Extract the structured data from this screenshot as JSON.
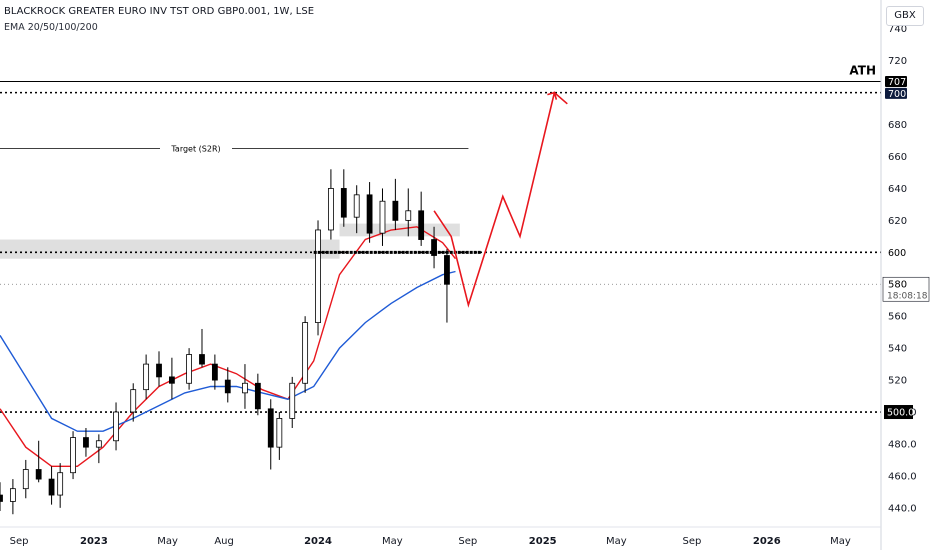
{
  "header": {
    "title": "BLACKROCK GREATER EURO INV TST ORD GBP0.001, 1W, LSE",
    "indicator": "EMA 20/50/100/200"
  },
  "currency_label": "GBX",
  "annotations": {
    "ath_label": "ATH",
    "target_label": "Target (S2R)"
  },
  "price_axis": {
    "ticks": [
      "740",
      "720",
      "700",
      "680",
      "660",
      "640",
      "620",
      "600",
      "580",
      "560",
      "540",
      "520",
      "500.0",
      "480.0",
      "460.0",
      "440.0"
    ],
    "badges": {
      "ath": "707",
      "level_700": "700",
      "level_600": "600",
      "last_price": "580",
      "countdown": "18:08:18",
      "level_500": "500.0"
    }
  },
  "time_axis": {
    "labels": [
      "Sep",
      "2023",
      "May",
      "Aug",
      "2024",
      "May",
      "Sep",
      "2025",
      "May",
      "Sep",
      "2026",
      "May"
    ]
  },
  "colors": {
    "up_candle": "#ffffff",
    "down_candle": "#000000",
    "ema_fast": "#e8171e",
    "ema_slow": "#1f5bd6",
    "projection": "#e8171e",
    "support_zone": "#d9d9d9",
    "ath_badge": "#000000",
    "level_badge": "#0d1b3e"
  },
  "chart_data": {
    "type": "candlestick",
    "symbol": "BLACKROCK GREATER EURO INV TST ORD GBP0.001",
    "timeframe": "1W",
    "exchange": "LSE",
    "y_unit": "GBX",
    "ylim": [
      428,
      758
    ],
    "x_range": [
      "2022-08-01",
      "2026-07-06"
    ],
    "grid": false,
    "candles": [
      {
        "d": "2022-08-01",
        "o": 448,
        "h": 456,
        "l": 438,
        "c": 444
      },
      {
        "d": "2022-08-22",
        "o": 444,
        "h": 458,
        "l": 436,
        "c": 452
      },
      {
        "d": "2022-09-12",
        "o": 452,
        "h": 470,
        "l": 446,
        "c": 464
      },
      {
        "d": "2022-10-03",
        "o": 464,
        "h": 482,
        "l": 456,
        "c": 458
      },
      {
        "d": "2022-10-24",
        "o": 458,
        "h": 466,
        "l": 442,
        "c": 448
      },
      {
        "d": "2022-11-07",
        "o": 448,
        "h": 468,
        "l": 440,
        "c": 462
      },
      {
        "d": "2022-11-28",
        "o": 462,
        "h": 488,
        "l": 458,
        "c": 484
      },
      {
        "d": "2022-12-19",
        "o": 484,
        "h": 490,
        "l": 472,
        "c": 478
      },
      {
        "d": "2023-01-09",
        "o": 478,
        "h": 486,
        "l": 468,
        "c": 482
      },
      {
        "d": "2023-02-06",
        "o": 482,
        "h": 506,
        "l": 476,
        "c": 500
      },
      {
        "d": "2023-03-06",
        "o": 500,
        "h": 518,
        "l": 494,
        "c": 514
      },
      {
        "d": "2023-03-27",
        "o": 514,
        "h": 536,
        "l": 508,
        "c": 530
      },
      {
        "d": "2023-04-17",
        "o": 530,
        "h": 538,
        "l": 516,
        "c": 522
      },
      {
        "d": "2023-05-08",
        "o": 522,
        "h": 534,
        "l": 508,
        "c": 518
      },
      {
        "d": "2023-06-05",
        "o": 518,
        "h": 540,
        "l": 514,
        "c": 536
      },
      {
        "d": "2023-06-26",
        "o": 536,
        "h": 552,
        "l": 528,
        "c": 530
      },
      {
        "d": "2023-07-17",
        "o": 530,
        "h": 536,
        "l": 514,
        "c": 520
      },
      {
        "d": "2023-08-07",
        "o": 520,
        "h": 528,
        "l": 506,
        "c": 512
      },
      {
        "d": "2023-09-04",
        "o": 512,
        "h": 530,
        "l": 502,
        "c": 518
      },
      {
        "d": "2023-09-25",
        "o": 518,
        "h": 524,
        "l": 498,
        "c": 502
      },
      {
        "d": "2023-10-16",
        "o": 502,
        "h": 508,
        "l": 464,
        "c": 478
      },
      {
        "d": "2023-10-30",
        "o": 478,
        "h": 500,
        "l": 470,
        "c": 496
      },
      {
        "d": "2023-11-20",
        "o": 496,
        "h": 522,
        "l": 490,
        "c": 518
      },
      {
        "d": "2023-12-11",
        "o": 518,
        "h": 560,
        "l": 512,
        "c": 556
      },
      {
        "d": "2024-01-01",
        "o": 556,
        "h": 620,
        "l": 548,
        "c": 614
      },
      {
        "d": "2024-01-22",
        "o": 614,
        "h": 652,
        "l": 608,
        "c": 640
      },
      {
        "d": "2024-02-12",
        "o": 640,
        "h": 652,
        "l": 616,
        "c": 622
      },
      {
        "d": "2024-03-04",
        "o": 622,
        "h": 642,
        "l": 612,
        "c": 636
      },
      {
        "d": "2024-03-25",
        "o": 636,
        "h": 644,
        "l": 606,
        "c": 612
      },
      {
        "d": "2024-04-15",
        "o": 612,
        "h": 640,
        "l": 604,
        "c": 632
      },
      {
        "d": "2024-05-06",
        "o": 632,
        "h": 646,
        "l": 614,
        "c": 620
      },
      {
        "d": "2024-05-27",
        "o": 620,
        "h": 640,
        "l": 610,
        "c": 626
      },
      {
        "d": "2024-06-17",
        "o": 626,
        "h": 638,
        "l": 604,
        "c": 608
      },
      {
        "d": "2024-07-08",
        "o": 608,
        "h": 616,
        "l": 590,
        "c": 598
      },
      {
        "d": "2024-07-29",
        "o": 598,
        "h": 602,
        "l": 556,
        "c": 580
      }
    ],
    "series": [
      {
        "type": "line",
        "x": [
          "2022-08-01",
          "2022-09-12",
          "2022-10-24",
          "2022-12-05",
          "2023-01-16",
          "2023-03-06",
          "2023-04-17",
          "2023-05-29",
          "2023-07-10",
          "2023-08-21",
          "2023-10-02",
          "2023-11-13",
          "2023-12-25",
          "2024-02-05",
          "2024-03-18",
          "2024-04-29",
          "2024-06-10",
          "2024-07-22",
          "2024-08-12"
        ],
        "y": [
          502,
          478,
          466,
          466,
          478,
          500,
          516,
          524,
          530,
          524,
          514,
          508,
          532,
          586,
          608,
          614,
          616,
          606,
          596
        ]
      },
      {
        "type": "line",
        "x": [
          "2022-08-01",
          "2022-09-12",
          "2022-10-24",
          "2022-12-05",
          "2023-01-16",
          "2023-03-06",
          "2023-04-17",
          "2023-05-29",
          "2023-07-10",
          "2023-08-21",
          "2023-10-02",
          "2023-11-13",
          "2023-12-25",
          "2024-02-05",
          "2024-03-18",
          "2024-04-29",
          "2024-06-10",
          "2024-07-22",
          "2024-08-12"
        ],
        "y": [
          548,
          522,
          496,
          488,
          488,
          496,
          504,
          512,
          516,
          516,
          512,
          508,
          516,
          540,
          556,
          568,
          578,
          586,
          588
        ]
      }
    ],
    "levels": [
      {
        "y": 707,
        "style": "solid"
      },
      {
        "y": 700,
        "style": "dotted"
      },
      {
        "y": 600,
        "style": "dotted"
      },
      {
        "y": 580,
        "style": "thin-dotted"
      },
      {
        "y": 500,
        "style": "dotted"
      }
    ],
    "target_line": {
      "y": 665,
      "x": [
        "2022-08-01",
        "2024-09-02"
      ]
    },
    "support_zones": [
      {
        "y": [
          596,
          608
        ],
        "x": [
          "2022-08-01",
          "2024-02-05"
        ]
      },
      {
        "y": [
          610,
          618
        ],
        "x": [
          "2024-02-05",
          "2024-08-19"
        ]
      }
    ],
    "support_marker": {
      "y": 600,
      "x": [
        "2023-12-25",
        "2024-09-23"
      ]
    },
    "projection": {
      "x": [
        "2024-07-08",
        "2024-08-05",
        "2024-09-02",
        "2024-10-28",
        "2024-11-25",
        "2025-01-20",
        "2025-02-10"
      ],
      "y": [
        626,
        610,
        567,
        635,
        610,
        700,
        693
      ]
    },
    "time_labels": [
      {
        "label": "Sep",
        "d": "2022-09-01"
      },
      {
        "label": "2023",
        "d": "2023-01-01"
      },
      {
        "label": "May",
        "d": "2023-05-01"
      },
      {
        "label": "Aug",
        "d": "2023-08-01"
      },
      {
        "label": "2024",
        "d": "2024-01-01"
      },
      {
        "label": "May",
        "d": "2024-05-01"
      },
      {
        "label": "Sep",
        "d": "2024-09-01"
      },
      {
        "label": "2025",
        "d": "2025-01-01"
      },
      {
        "label": "May",
        "d": "2025-05-01"
      },
      {
        "label": "Sep",
        "d": "2025-09-01"
      },
      {
        "label": "2026",
        "d": "2026-01-01"
      },
      {
        "label": "May",
        "d": "2026-05-01"
      }
    ]
  }
}
